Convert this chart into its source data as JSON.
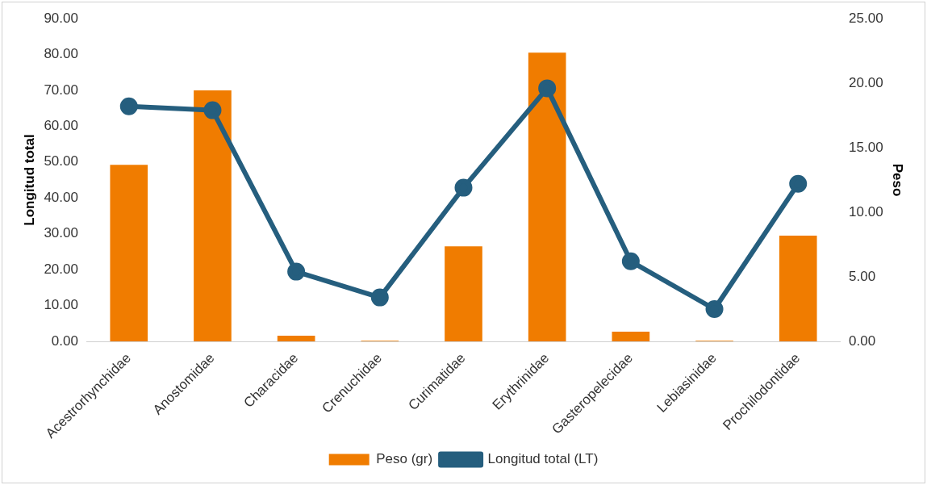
{
  "chart_data": {
    "type": "bar",
    "categories": [
      "Acestrorhynchidae",
      "Anostomidae",
      "Characidae",
      "Crenuchidae",
      "Curimatidae",
      "Erythrinidae",
      "Gasteropelecidae",
      "Lebiasinidae",
      "Prochilodontidae"
    ],
    "series": [
      {
        "name": "Peso (gr)",
        "color": "#f07c00",
        "values": [
          49.2,
          70.0,
          1.6,
          0.2,
          26.5,
          80.5,
          2.7,
          0.2,
          29.5
        ]
      },
      {
        "name": "Longitud total (LT)",
        "type": "line",
        "axis": "y2",
        "color": "#255e7e",
        "values": [
          18.2,
          17.9,
          5.4,
          3.4,
          11.9,
          19.6,
          6.2,
          2.5,
          12.2
        ]
      }
    ],
    "ylabel": "Longitud total",
    "y2label": "Peso",
    "ylim": [
      0,
      90
    ],
    "yticks": [
      {
        "value": 0,
        "label": "0.00"
      },
      {
        "value": 10,
        "label": "10.00"
      },
      {
        "value": 20,
        "label": "20.00"
      },
      {
        "value": 30,
        "label": "30.00"
      },
      {
        "value": 40,
        "label": "40.00"
      },
      {
        "value": 50,
        "label": "50.00"
      },
      {
        "value": 60,
        "label": "60.00"
      },
      {
        "value": 70,
        "label": "70.00"
      },
      {
        "value": 80,
        "label": "80.00"
      },
      {
        "value": 90,
        "label": "90.00"
      }
    ],
    "y2lim": [
      0,
      25
    ],
    "y2ticks": [
      {
        "value": 0,
        "label": "0.00"
      },
      {
        "value": 5,
        "label": "5.00"
      },
      {
        "value": 10,
        "label": "10.00"
      },
      {
        "value": 15,
        "label": "15.00"
      },
      {
        "value": 20,
        "label": "20.00"
      },
      {
        "value": 25,
        "label": "25.00"
      }
    ],
    "grid": false,
    "legend": "bottom",
    "marker": "circle",
    "line_style": "solid"
  }
}
